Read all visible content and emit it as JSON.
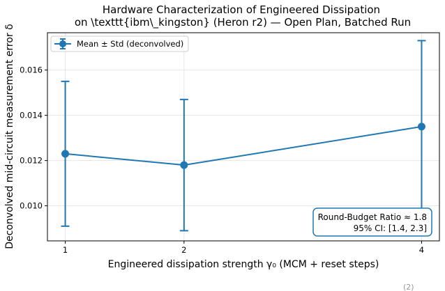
{
  "chart_data": {
    "type": "line",
    "title_line1": "Hardware Characterization of Engineered Dissipation",
    "title_line2": "on \\texttt{ibm\\_kingston} (Heron r2) — Open Plan, Batched Run",
    "xlabel": "Engineered dissipation strength γ₀ (MCM + reset steps)",
    "ylabel": "Deconvolved mid-circuit measurement error δ",
    "x": [
      1,
      2,
      4
    ],
    "x_ticks": [
      "1",
      "2",
      "4"
    ],
    "xlim": [
      0.85,
      4.15
    ],
    "ylim": [
      0.00845,
      0.01765
    ],
    "y_ticks": [
      "0.010",
      "0.012",
      "0.014",
      "0.016"
    ],
    "y_tick_values": [
      0.01,
      0.012,
      0.014,
      0.016
    ],
    "grid": true,
    "legend_position": "top-left",
    "series": [
      {
        "name": "Mean ± Std (deconvolved)",
        "color": "#1f77b4",
        "values": [
          0.0123,
          0.0118,
          0.0135
        ],
        "err_low": [
          0.0091,
          0.0089,
          0.0096
        ],
        "err_high": [
          0.0155,
          0.0147,
          0.0173
        ]
      }
    ],
    "annotation": {
      "line1": "Round-Budget Ratio ≈ 1.8",
      "line2": "95% CI: [1.4, 2.3]",
      "position": "bottom-right"
    },
    "corner_fragment": "(2)"
  }
}
